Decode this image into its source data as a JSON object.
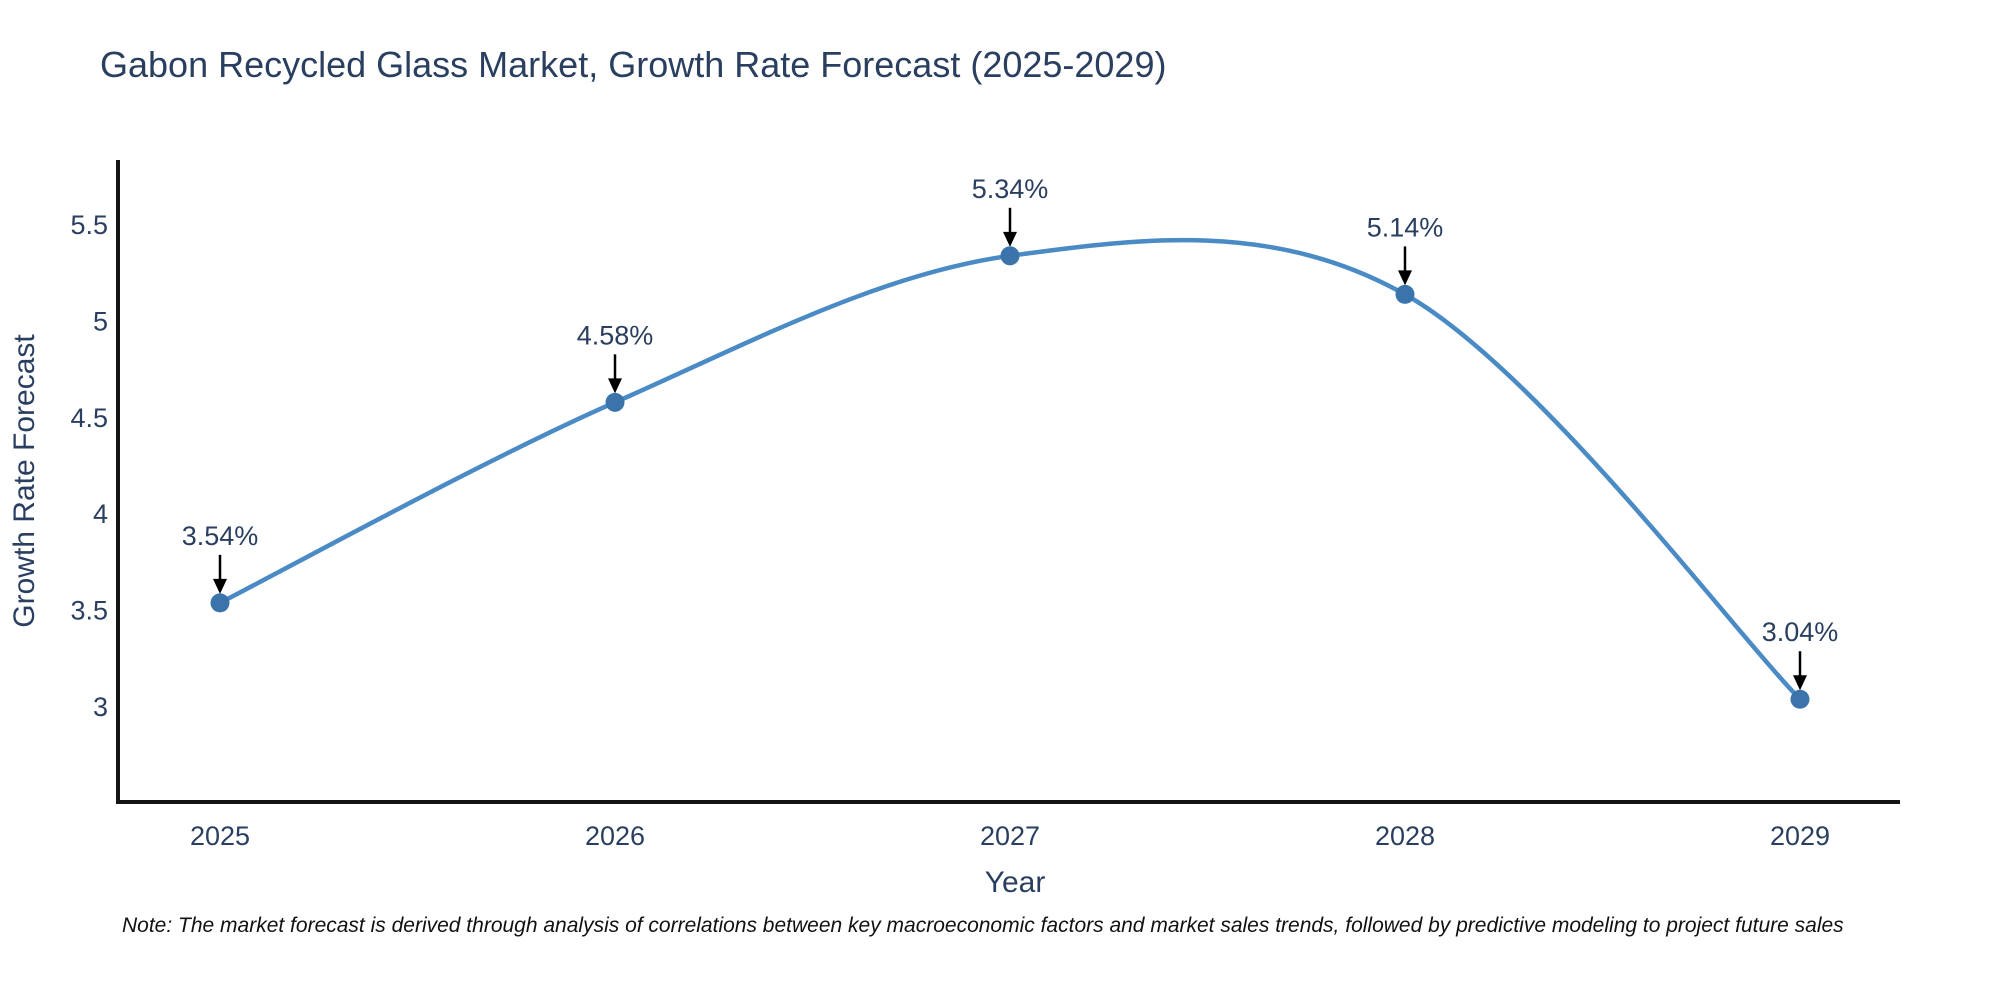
{
  "title": "Gabon Recycled Glass Market, Growth Rate Forecast (2025-2029)",
  "footnote": "Note: The market forecast is derived through analysis of correlations between key macroeconomic factors and market sales trends, followed by predictive modeling to project future sales",
  "chart_data": {
    "type": "line",
    "line_shape": "spline",
    "x": [
      2025,
      2026,
      2027,
      2028,
      2029
    ],
    "values": [
      3.54,
      4.58,
      5.34,
      5.14,
      3.04
    ],
    "point_labels": [
      "3.54%",
      "4.58%",
      "5.34%",
      "5.14%",
      "3.04%"
    ],
    "xtick_labels": [
      "2025",
      "2026",
      "2027",
      "2028",
      "2029"
    ],
    "yticks": [
      3,
      3.5,
      4,
      4.5,
      5,
      5.5
    ],
    "ytick_labels": [
      "3",
      "3.5",
      "4",
      "4.5",
      "5",
      "5.5"
    ],
    "xlabel": "Year",
    "ylabel": "Growth Rate Forecast",
    "xlim": [
      2024.74,
      2029.25
    ],
    "ylim": [
      2.507,
      5.837
    ],
    "grid": "off",
    "legend": "none",
    "colors": {
      "line": "#4a8ac5",
      "marker": "#3a74ab",
      "axis": "#141414",
      "text": "#2a3f5f",
      "arrow": "#000000"
    }
  }
}
